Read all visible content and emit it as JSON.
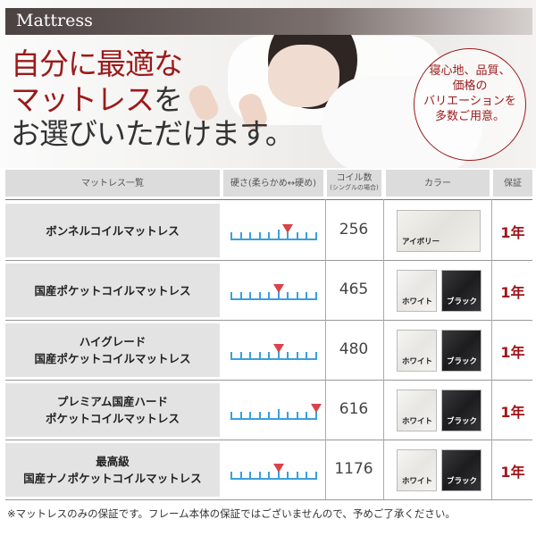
{
  "banner": {
    "title": "Mattress",
    "headline_line1": "自分に最適な",
    "headline_line2a": "マットレス",
    "headline_line2b": "を",
    "headline_line3": "お選びいただけます。",
    "badge_text": "寝心地、品質、\n価格の\nバリエーションを\n多数ご用意。",
    "accent_color": "#9b1a1a"
  },
  "table": {
    "headers": {
      "name": "マットレス一覧",
      "hardness": "硬さ(柔らかめ↔硬め)",
      "coil": "コイル数",
      "coil_note": "(シングルの場合)",
      "color": "カラー",
      "warranty": "保証"
    },
    "hardness_scale_max": 9,
    "rows": [
      {
        "name": "ボンネルコイルマットレス",
        "hardness": 6,
        "coil": "256",
        "colors": [
          {
            "label": "アイボリー",
            "swatch": "ivory"
          }
        ],
        "warranty": "1年"
      },
      {
        "name": "国産ポケットコイルマットレス",
        "hardness": 5,
        "coil": "465",
        "colors": [
          {
            "label": "ホワイト",
            "swatch": "white"
          },
          {
            "label": "ブラック",
            "swatch": "black"
          }
        ],
        "warranty": "1年"
      },
      {
        "name": "ハイグレード\n国産ポケットコイルマットレス",
        "hardness": 5,
        "coil": "480",
        "colors": [
          {
            "label": "ホワイト",
            "swatch": "white"
          },
          {
            "label": "ブラック",
            "swatch": "black"
          }
        ],
        "warranty": "1年"
      },
      {
        "name": "プレミアム国産ハード\nポケットコイルマットレス",
        "hardness": 9,
        "coil": "616",
        "colors": [
          {
            "label": "ホワイト",
            "swatch": "white"
          },
          {
            "label": "ブラック",
            "swatch": "black"
          }
        ],
        "warranty": "1年"
      },
      {
        "name": "最高級\n国産ナノポケットコイルマットレス",
        "hardness": 5,
        "coil": "1176",
        "colors": [
          {
            "label": "ホワイト",
            "swatch": "white"
          },
          {
            "label": "ブラック",
            "swatch": "black"
          }
        ],
        "warranty": "1年"
      }
    ]
  },
  "footnote": "※マットレスのみの保証です。フレーム本体の保証ではございませんので、予めご了承ください。"
}
